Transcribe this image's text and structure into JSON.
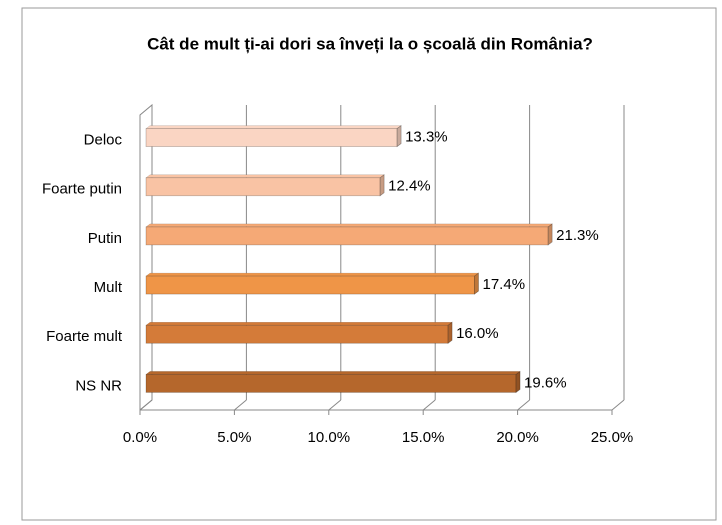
{
  "chart_data": {
    "type": "bar",
    "orientation": "horizontal",
    "title": "Cât de mult ți-ai dori sa înveți la o școală din România?",
    "categories": [
      "Deloc",
      "Foarte putin",
      "Putin",
      "Mult",
      "Foarte mult",
      "NS NR"
    ],
    "values": [
      13.3,
      12.4,
      21.3,
      17.4,
      16.0,
      19.6
    ],
    "value_labels": [
      "13.3%",
      "12.4%",
      "21.3%",
      "17.4%",
      "16.0%",
      "19.6%"
    ],
    "colors": [
      "#fad5c3",
      "#f9c3a4",
      "#f5a976",
      "#ef9547",
      "#d47b39",
      "#b5672c"
    ],
    "xlim": [
      0,
      25
    ],
    "xticks": [
      {
        "value": 0,
        "label": "0.0%"
      },
      {
        "value": 5,
        "label": "5.0%"
      },
      {
        "value": 10,
        "label": "10.0%"
      },
      {
        "value": 15,
        "label": "15.0%"
      },
      {
        "value": 20,
        "label": "20.0%"
      },
      {
        "value": 25,
        "label": "25.0%"
      }
    ],
    "grid": true
  }
}
